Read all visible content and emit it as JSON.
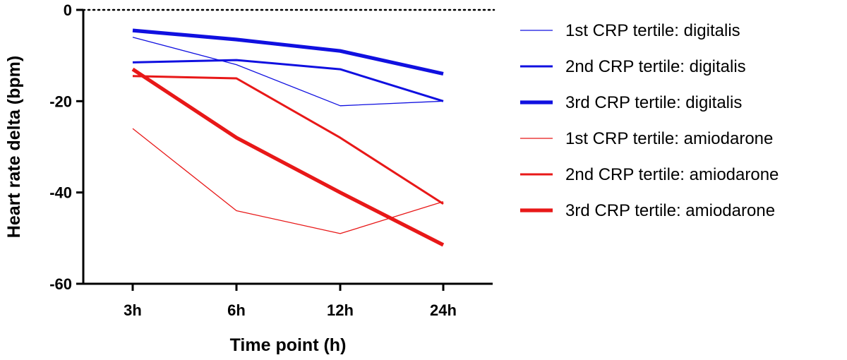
{
  "chart_data": {
    "type": "line",
    "xlabel": "Time point (h)",
    "ylabel": "Heart rate delta (bpm)",
    "categories": [
      "3h",
      "6h",
      "12h",
      "24h"
    ],
    "ylim": [
      -60,
      0
    ],
    "yticks": [
      0,
      -20,
      -40,
      -60
    ],
    "reference_line": 0,
    "legend_position": "right",
    "series": [
      {
        "name": "1st CRP tertile: digitalis",
        "color": "#1010e0",
        "weight": "thin",
        "values": [
          -6,
          -12,
          -21,
          -20
        ]
      },
      {
        "name": "2nd CRP tertile: digitalis",
        "color": "#1010e0",
        "weight": "medium",
        "values": [
          -11.5,
          -11,
          -13,
          -20
        ]
      },
      {
        "name": "3rd CRP tertile: digitalis",
        "color": "#1010e0",
        "weight": "thick",
        "values": [
          -4.5,
          -6.5,
          -9,
          -14
        ]
      },
      {
        "name": "1st CRP tertile: amiodarone",
        "color": "#e81818",
        "weight": "thin",
        "values": [
          -26,
          -44,
          -49,
          -42
        ]
      },
      {
        "name": "2nd CRP tertile: amiodarone",
        "color": "#e81818",
        "weight": "medium",
        "values": [
          -14.5,
          -15,
          -28,
          -42.5
        ]
      },
      {
        "name": "3rd CRP tertile: amiodarone",
        "color": "#e81818",
        "weight": "thick",
        "values": [
          -13,
          -28,
          -40,
          -51.5
        ]
      }
    ]
  }
}
